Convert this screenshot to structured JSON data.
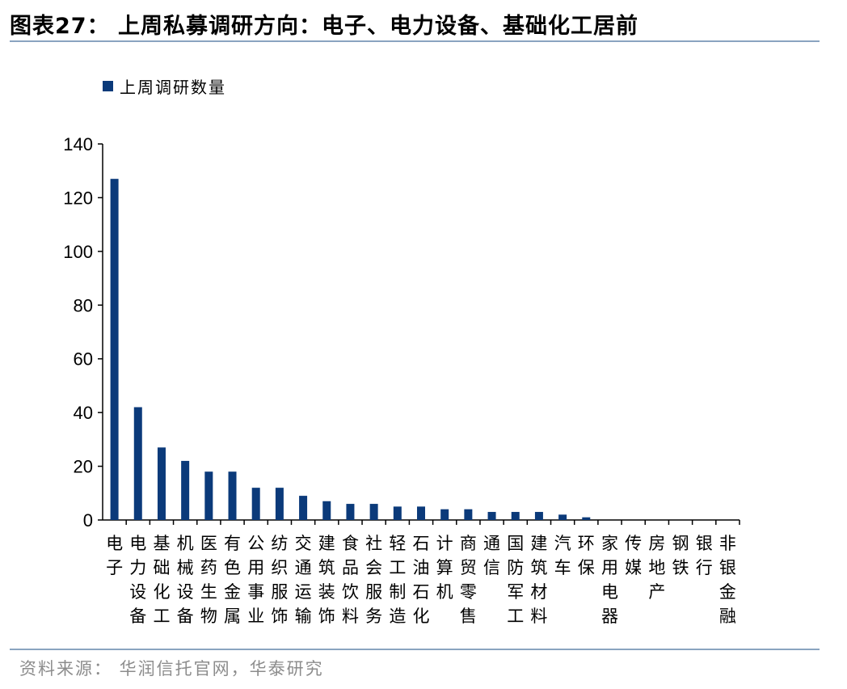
{
  "header": {
    "title": "图表27：  上周私募调研方向：电子、电力设备、基础化工居前"
  },
  "footer": {
    "source": "资料来源：  华润信托官网，华泰研究"
  },
  "colors": {
    "bar": "#0b3a7a",
    "rule": "#8aa4c0",
    "source_text": "#8c8c8c"
  },
  "chart_data": {
    "type": "bar",
    "title": "",
    "xlabel": "",
    "ylabel": "",
    "ylim": [
      0,
      140
    ],
    "yticks": [
      0,
      20,
      40,
      60,
      80,
      100,
      120,
      140
    ],
    "grid": false,
    "legend_position": "top-left",
    "series": [
      {
        "name": "上周调研数量",
        "values": [
          127,
          42,
          27,
          22,
          18,
          18,
          12,
          12,
          9,
          7,
          6,
          6,
          5,
          5,
          4,
          4,
          3,
          3,
          3,
          2,
          1,
          0,
          0,
          0,
          0,
          0,
          0
        ]
      }
    ],
    "categories": [
      "电子",
      "电力设备",
      "基础化工",
      "机械设备",
      "医药生物",
      "有色金属",
      "公用事业",
      "纺织服饰",
      "交通运输",
      "建筑装饰",
      "食品饮料",
      "社会服务",
      "轻工制造",
      "石油石化",
      "计算机",
      "商贸零售",
      "通信",
      "国防军工",
      "建筑材料",
      "汽车",
      "环保",
      "家用电器",
      "传媒",
      "房地产",
      "钢铁",
      "银行",
      "非银金融"
    ]
  }
}
